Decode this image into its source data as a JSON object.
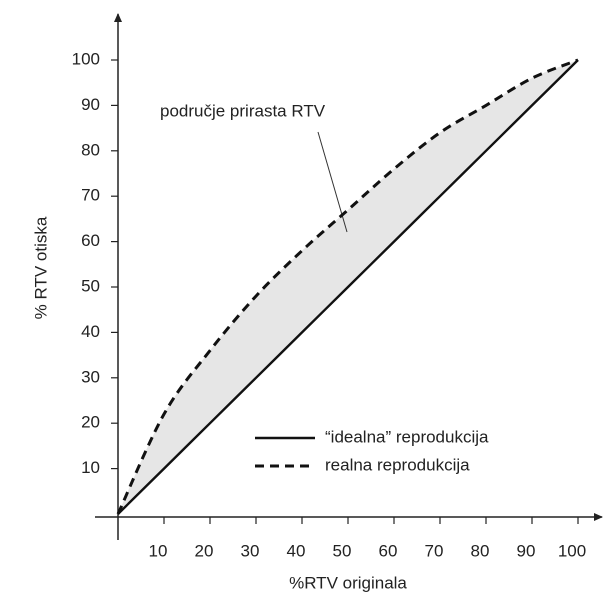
{
  "chart_data": {
    "type": "line",
    "annotation": "područje prirasta RTV",
    "xlabel": "%RTV originala",
    "ylabel": "% RTV otiska",
    "x": [
      0,
      10,
      20,
      30,
      40,
      50,
      60,
      70,
      80,
      90,
      100
    ],
    "series": [
      {
        "name": "“idealna” reprodukcija",
        "color": "#111111",
        "dash": false,
        "values": [
          0,
          10,
          20,
          30,
          40,
          50,
          60,
          70,
          80,
          90,
          100
        ]
      },
      {
        "name": "realna reprodukcija",
        "color": "#111111",
        "dash": true,
        "values": [
          0,
          22,
          36,
          48,
          58,
          67,
          76,
          84,
          90,
          96,
          100
        ]
      }
    ],
    "fill_between": "#e6e6e6",
    "xlim": [
      0,
      100
    ],
    "ylim": [
      0,
      100
    ],
    "xticks": [
      10,
      20,
      30,
      40,
      50,
      60,
      70,
      80,
      90,
      100
    ],
    "yticks": [
      10,
      20,
      30,
      40,
      50,
      60,
      70,
      80,
      90,
      100
    ],
    "legend": "lower right"
  }
}
